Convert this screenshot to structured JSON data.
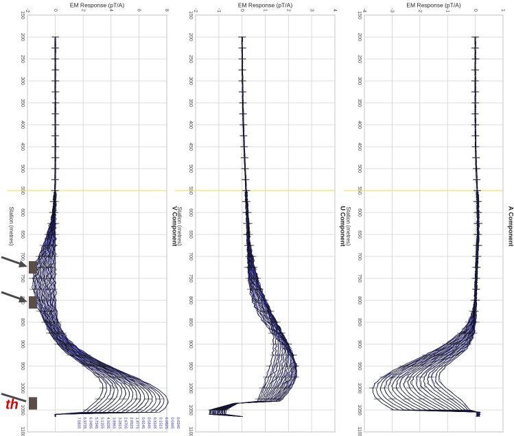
{
  "chart_data": [
    {
      "type": "line",
      "component": "V Component",
      "title": "EM Response (pT/A)",
      "station_label": "Station (metres)",
      "xlim": [
        150,
        1100
      ],
      "ylim": [
        -2,
        8
      ],
      "resp_ticks": [
        "-2",
        "0",
        "2",
        "4",
        "6",
        "8"
      ],
      "station_ticks": [
        "150",
        "200",
        "250",
        "300",
        "350",
        "400",
        "450",
        "500",
        "550",
        "600",
        "650",
        "700",
        "750",
        "800",
        "850",
        "900",
        "950",
        "1000",
        "1050",
        "1100"
      ],
      "marker_station": 550,
      "n_channels": 18,
      "observed_color": "#111111",
      "model_color": "#2a2ab8",
      "peak_station": 1035,
      "peak_value": 7.2,
      "early_trough": -1.6,
      "channel_labels": [
        "7.5835",
        "6.9735",
        "6.3495",
        "5.7345",
        "5.1255",
        "4.5035",
        "3.8965",
        "3.2815",
        "2.6705",
        "2.0525",
        "1.4775",
        "0.9145",
        "0.5845",
        "0.3165",
        "0.1515",
        "0.0825",
        "0.0445",
        "0.0245"
      ]
    },
    {
      "type": "line",
      "component": "U Component",
      "title": "EM Response (pT/A)",
      "station_label": "Station (metres)",
      "xlim": [
        150,
        1100
      ],
      "ylim": [
        -2,
        4
      ],
      "resp_ticks": [
        "-2",
        "-1",
        "0",
        "1",
        "2",
        "3",
        "4"
      ],
      "station_ticks": [
        "150",
        "200",
        "250",
        "300",
        "350",
        "400",
        "450",
        "500",
        "550",
        "600",
        "650",
        "700",
        "750",
        "800",
        "850",
        "900",
        "950",
        "1000",
        "1050",
        "1100"
      ],
      "marker_station": 550,
      "n_channels": 18,
      "observed_color": "#111111",
      "model_color": "#2a2ab8",
      "peak_station": 965,
      "peak_value": 3.5,
      "crossover_station": 1030,
      "trough_value": -1.4
    },
    {
      "type": "line",
      "component": "A Component",
      "title": "EM Response (pT/A)",
      "station_label": "Station (metres)",
      "xlim": [
        150,
        1100
      ],
      "ylim": [
        -4,
        1
      ],
      "resp_ticks": [
        "-4",
        "-3",
        "-2",
        "-1",
        "0",
        "1"
      ],
      "station_ticks": [
        "150",
        "200",
        "250",
        "300",
        "350",
        "400",
        "450",
        "500",
        "550",
        "600",
        "650",
        "700",
        "750",
        "800",
        "850",
        "900",
        "950",
        "1000",
        "1050",
        "1100"
      ],
      "marker_station": 550,
      "n_channels": 18,
      "observed_color": "#111111",
      "model_color": "#2a2ab8",
      "trough_station": 1005,
      "trough_value": -3.7
    }
  ],
  "annotations": {
    "red_text": "th",
    "red_color": "#e00000",
    "arrow_color": "#4a4a4a",
    "box_color": "#5a4e48",
    "box_stations": [
      725,
      805,
      1035
    ]
  }
}
